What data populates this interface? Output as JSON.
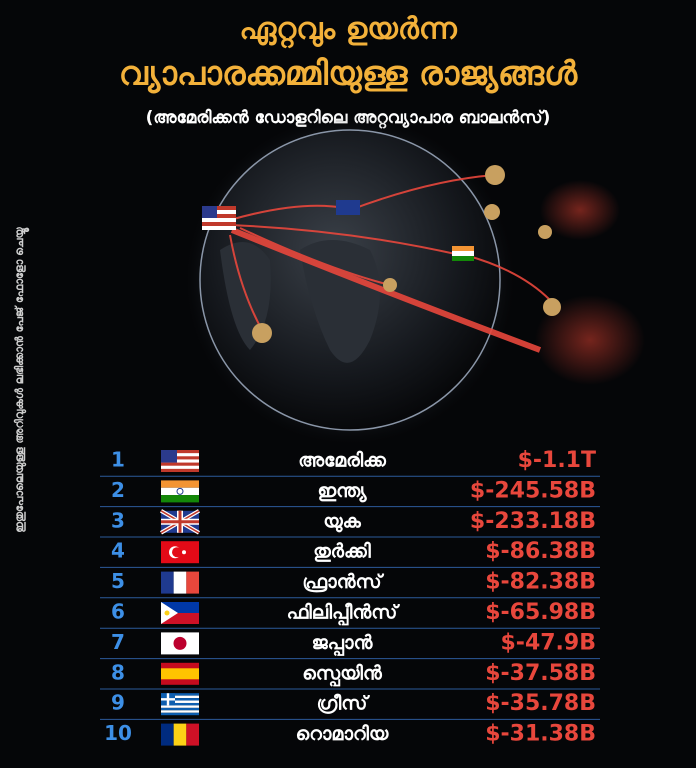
{
  "header": {
    "title_line1": "ഏറ്റവും ഉയർന്ന",
    "title_line2": "വ്യാപാരക്കമ്മിയുള്ള രാജ്യങ്ങൾ",
    "subtitle": "(അമേരിക്കൻ ഡോളറിലെ അറ്റവ്യാപാര ബാലൻസ്)"
  },
  "side_note": "ഇതുപോലെയുള്ള അറിവുകൾ ലഭിക്കാൻ പേജ് ഫോളോ ചെയ്യൂ",
  "table": {
    "rows": [
      [
        1,
        "അമേരിക്ക",
        "$-1.1T"
      ],
      [
        2,
        "ഇന്ത്യ",
        "$-245.58B"
      ],
      [
        3,
        "യുക",
        "$-233.18B"
      ],
      [
        4,
        "തുർക്കി",
        "$-86.38B"
      ],
      [
        5,
        "ഫ്രാൻസ്",
        "$-82.38B"
      ],
      [
        6,
        "ഫിലിപ്പീൻസ്",
        "$-65.98B"
      ],
      [
        7,
        "ജപ്പാൻ",
        "$-47.9B"
      ],
      [
        8,
        "സ്പെയിൻ",
        "$-37.58B"
      ],
      [
        9,
        "ഗ്രീസ്",
        "$-35.78B"
      ],
      [
        10,
        "റൊമാറിയ",
        "$-31.38B"
      ]
    ]
  }
}
